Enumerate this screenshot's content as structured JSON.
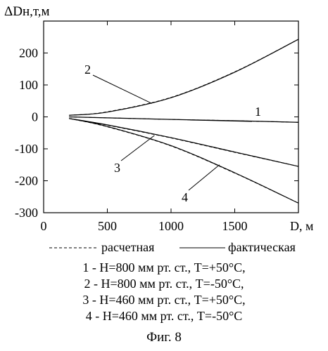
{
  "chart_data": {
    "type": "line",
    "title": "",
    "ylabel": "ΔDн,т,м",
    "xlabel": "D, м",
    "xlim": [
      0,
      2000
    ],
    "ylim": [
      -300,
      300
    ],
    "x_ticks": [
      "0",
      "500",
      "1000",
      "1500"
    ],
    "y_ticks": [
      "200",
      "100",
      "0",
      "-100",
      "-200",
      "-300"
    ],
    "grid": false,
    "legend": {
      "dashed": "расчетная",
      "solid": "фактическая"
    },
    "series": [
      {
        "name": "1",
        "curve_label": "1",
        "x": [
          200,
          500,
          1000,
          1500,
          2000
        ],
        "y": [
          0,
          -3,
          -8,
          -12,
          -17
        ],
        "calc": [
          0,
          -3,
          -8,
          -12,
          -17
        ]
      },
      {
        "name": "2",
        "curve_label": "2",
        "x": [
          200,
          500,
          1000,
          1500,
          2000
        ],
        "y": [
          5,
          15,
          60,
          140,
          243
        ],
        "calc": [
          5,
          16,
          61,
          141,
          243
        ]
      },
      {
        "name": "3",
        "curve_label": "3",
        "x": [
          200,
          500,
          1000,
          1500,
          2000
        ],
        "y": [
          -5,
          -25,
          -65,
          -110,
          -155
        ],
        "calc": [
          -5,
          -26,
          -66,
          -111,
          -155
        ]
      },
      {
        "name": "4",
        "curve_label": "4",
        "x": [
          200,
          500,
          1000,
          1500,
          2000
        ],
        "y": [
          -5,
          -30,
          -90,
          -175,
          -270
        ],
        "calc": [
          -5,
          -31,
          -91,
          -176,
          -270
        ]
      }
    ]
  },
  "descriptions": [
    "1 - H=800 мм рт. ст., T=+50°C,",
    "2 - H=800 мм рт. ст., T=-50°C,",
    "3 - H=460 мм рт. ст., T=+50°C,",
    "4 - H=460 мм рт. ст., T=-50°C"
  ],
  "caption": "Фиг. 8"
}
